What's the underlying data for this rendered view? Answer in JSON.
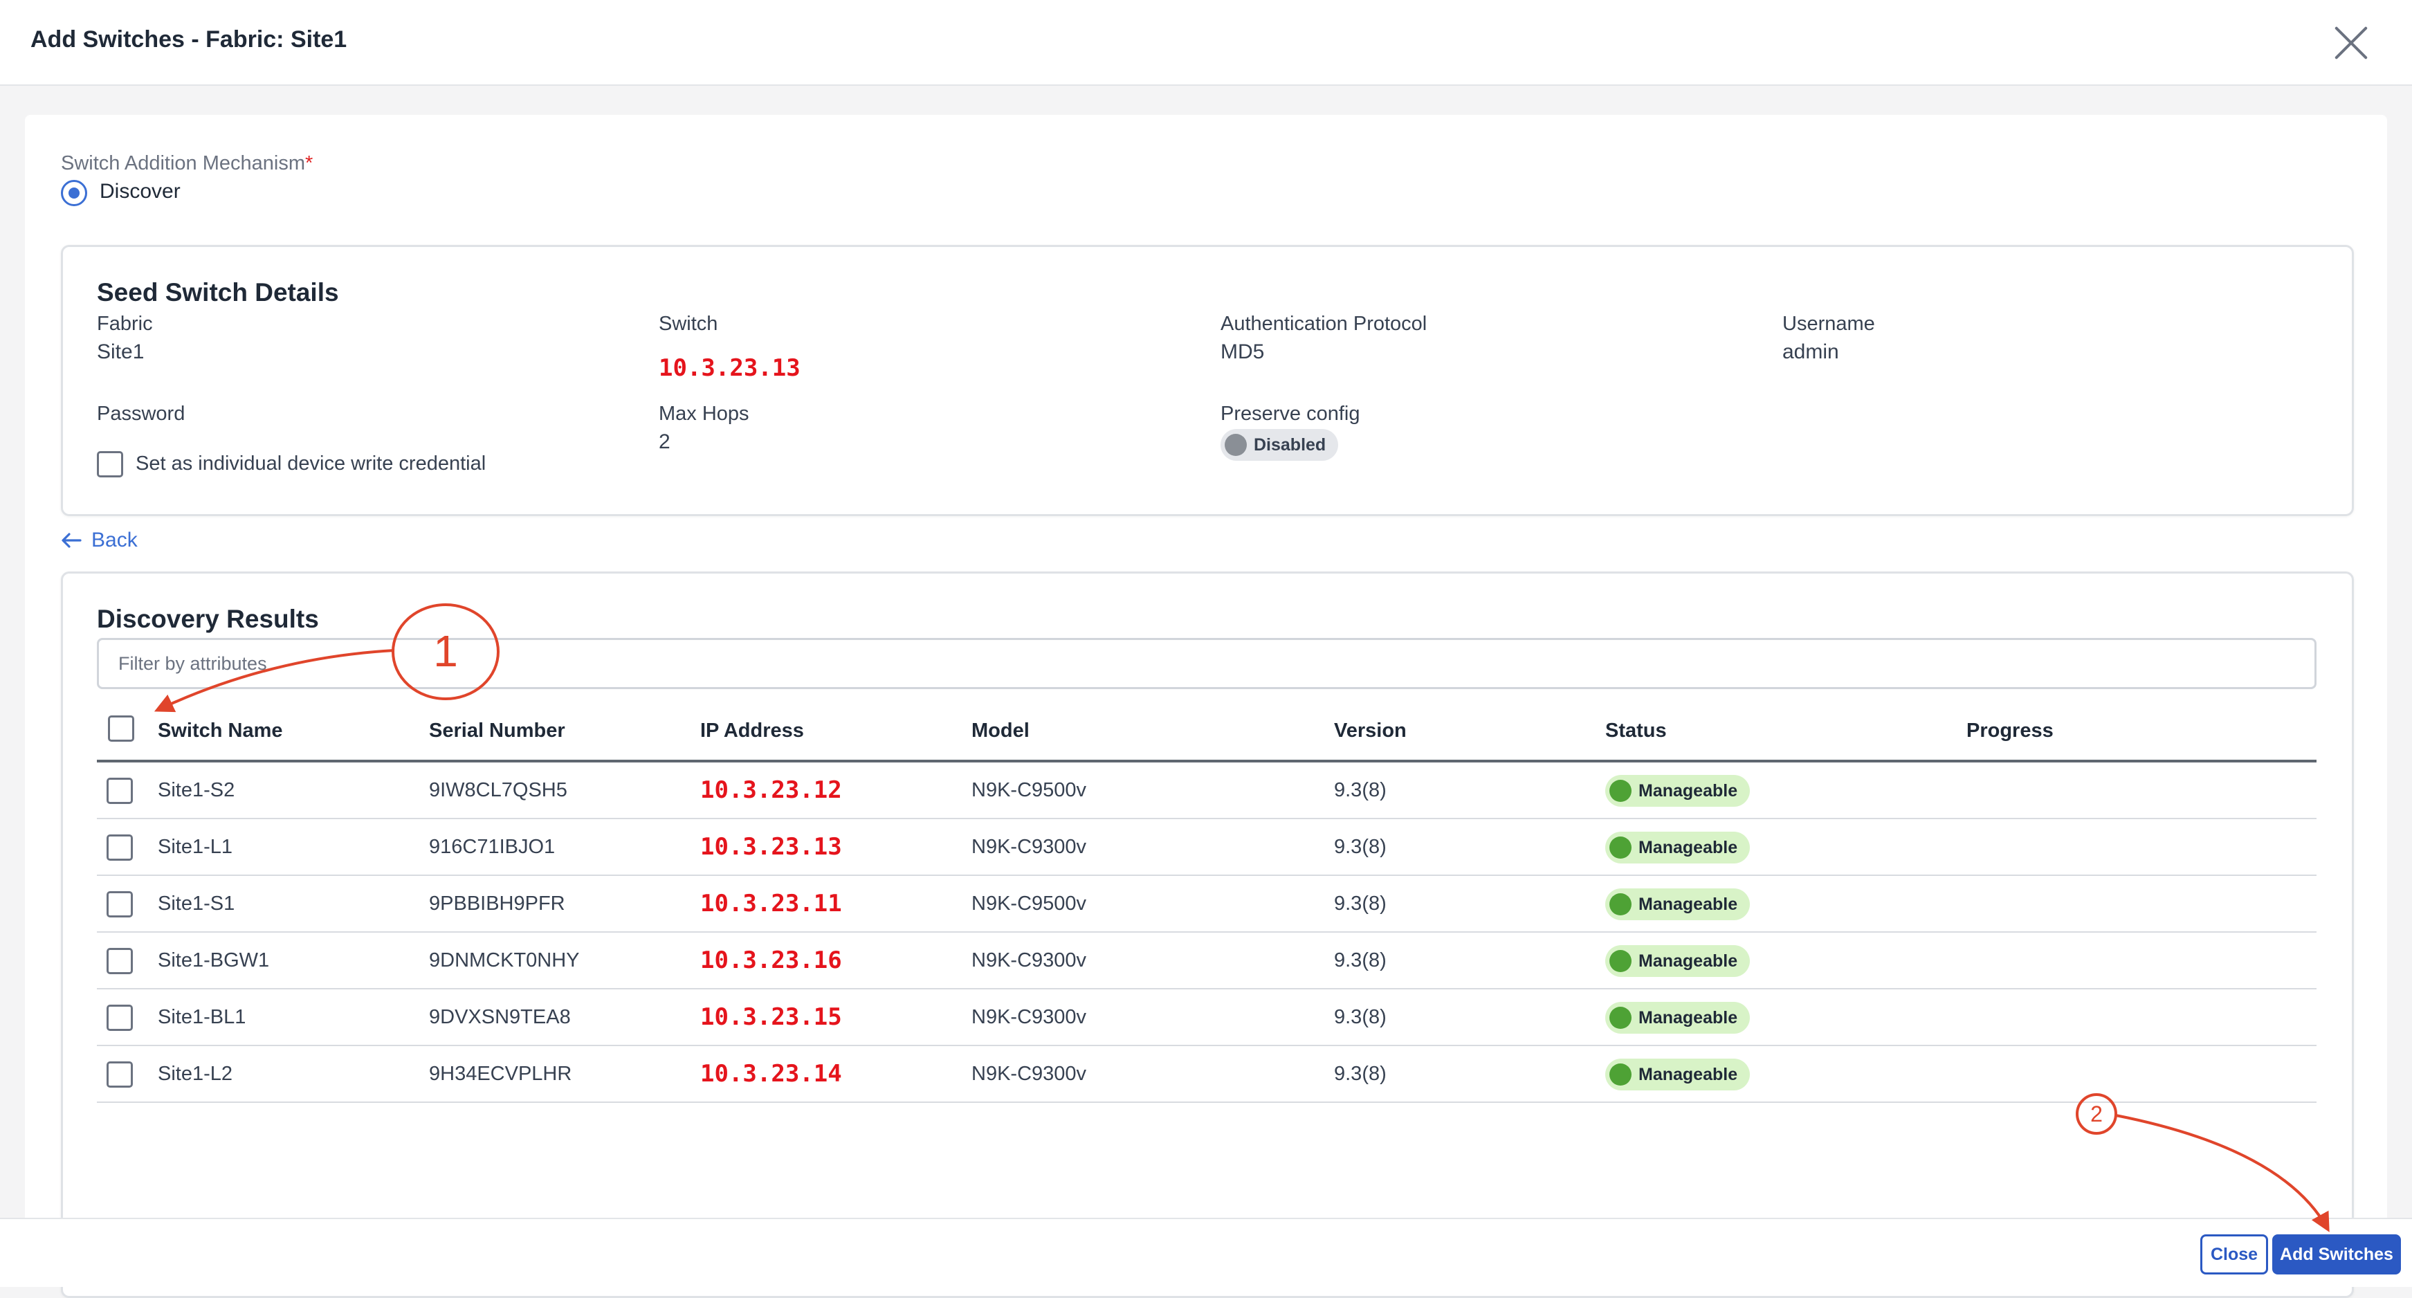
{
  "header": {
    "title": "Add Switches - Fabric: Site1"
  },
  "mechanism": {
    "label": "Switch Addition Mechanism",
    "required_mark": "*",
    "option": "Discover"
  },
  "seed": {
    "title": "Seed Switch Details",
    "fabric_label": "Fabric",
    "fabric_value": "Site1",
    "switch_label": "Switch",
    "switch_value": "10.3.23.13",
    "auth_label": "Authentication Protocol",
    "auth_value": "MD5",
    "username_label": "Username",
    "username_value": "admin",
    "password_label": "Password",
    "credential_checkbox_label": "Set as individual device write credential",
    "maxhops_label": "Max Hops",
    "maxhops_value": "2",
    "preserve_label": "Preserve config",
    "preserve_value": "Disabled"
  },
  "back_label": "Back",
  "discovery": {
    "title": "Discovery Results",
    "filter_placeholder": "Filter by attributes",
    "columns": [
      "Switch Name",
      "Serial Number",
      "IP Address",
      "Model",
      "Version",
      "Status",
      "Progress"
    ],
    "rows": [
      {
        "name": "Site1-S2",
        "serial": "9IW8CL7QSH5",
        "ip": "10.3.23.12",
        "model": "N9K-C9500v",
        "version": "9.3(8)",
        "status": "Manageable"
      },
      {
        "name": "Site1-L1",
        "serial": "916C71IBJO1",
        "ip": "10.3.23.13",
        "model": "N9K-C9300v",
        "version": "9.3(8)",
        "status": "Manageable"
      },
      {
        "name": "Site1-S1",
        "serial": "9PBBIBH9PFR",
        "ip": "10.3.23.11",
        "model": "N9K-C9500v",
        "version": "9.3(8)",
        "status": "Manageable"
      },
      {
        "name": "Site1-BGW1",
        "serial": "9DNMCKT0NHY",
        "ip": "10.3.23.16",
        "model": "N9K-C9300v",
        "version": "9.3(8)",
        "status": "Manageable"
      },
      {
        "name": "Site1-BL1",
        "serial": "9DVXSN9TEA8",
        "ip": "10.3.23.15",
        "model": "N9K-C9300v",
        "version": "9.3(8)",
        "status": "Manageable"
      },
      {
        "name": "Site1-L2",
        "serial": "9H34ECVPLHR",
        "ip": "10.3.23.14",
        "model": "N9K-C9300v",
        "version": "9.3(8)",
        "status": "Manageable"
      }
    ]
  },
  "footer": {
    "close_label": "Close",
    "add_label": "Add Switches"
  },
  "annotations": {
    "first": "1",
    "second": "2"
  },
  "colors": {
    "primary": "#2b59c3",
    "annotation": "#e0452b",
    "ip_red": "#e5141c",
    "status_green": "#4ea235"
  }
}
